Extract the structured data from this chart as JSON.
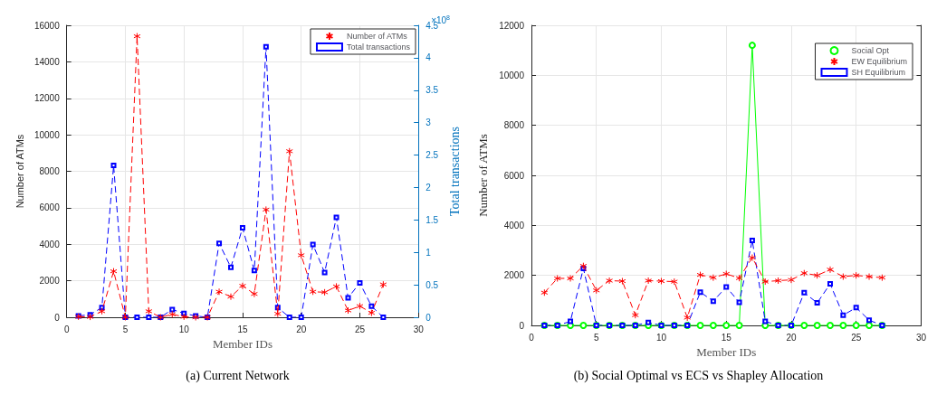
{
  "chart_data": [
    {
      "type": "line",
      "title": "(a) Current Network",
      "xlabel": "Member IDs",
      "ylabel": "Number of ATMs",
      "y2label": "Total transactions",
      "annotations": [
        "×10$^{8}$"
      ],
      "x": [
        1,
        2,
        3,
        4,
        5,
        6,
        7,
        8,
        9,
        10,
        11,
        12,
        13,
        14,
        15,
        16,
        17,
        18,
        19,
        20,
        21,
        22,
        23,
        24,
        25,
        26,
        27
      ],
      "series": [
        {
          "name": "Number of ATMs",
          "color": "#ff0000",
          "marker": "cross",
          "line_style": "dashed",
          "values": [
            30,
            20,
            330,
            2520,
            0,
            15400,
            330,
            0,
            160,
            30,
            0,
            0,
            1400,
            1130,
            1720,
            1280,
            5900,
            190,
            9100,
            3400,
            1400,
            1370,
            1690,
            370,
            610,
            240,
            1800
          ]
        },
        {
          "name": "Total transactions",
          "color": "#0000ff",
          "marker": "square",
          "line_style": "dashed",
          "axis": "y2",
          "values": [
            0.02,
            0.04,
            0.15,
            2.34,
            0,
            0,
            0,
            0,
            0.12,
            0.06,
            0.02,
            0,
            1.14,
            0.77,
            1.38,
            0.72,
            4.17,
            0.15,
            0,
            0,
            1.12,
            0.69,
            1.54,
            0.3,
            0.53,
            0.17,
            0
          ]
        }
      ],
      "xlim": [
        0,
        30
      ],
      "xticks": [
        0,
        5,
        10,
        15,
        20,
        25,
        30
      ],
      "ylim": [
        0,
        16000
      ],
      "yticks": [
        0,
        2000,
        4000,
        6000,
        8000,
        10000,
        12000,
        14000,
        16000
      ],
      "y2lim": [
        0,
        4.5
      ],
      "y2ticks": [
        0,
        0.5,
        1,
        1.5,
        2,
        2.5,
        3,
        3.5,
        4,
        4.5
      ],
      "grid": true,
      "legend": "top right"
    },
    {
      "type": "line",
      "title": "(b) Social Optimal vs ECS vs Shapley Allocation",
      "xlabel": "Member IDs",
      "ylabel": "Number of ATMs",
      "x": [
        1,
        2,
        3,
        4,
        5,
        6,
        7,
        8,
        9,
        10,
        11,
        12,
        13,
        14,
        15,
        16,
        17,
        18,
        19,
        20,
        21,
        22,
        23,
        24,
        25,
        26,
        27
      ],
      "series": [
        {
          "name": "Social Opt",
          "color": "#00ff00",
          "marker": "circle",
          "line_style": "solid",
          "values": [
            0,
            0,
            0,
            0,
            0,
            0,
            0,
            0,
            0,
            0,
            0,
            0,
            0,
            0,
            0,
            0,
            11200,
            0,
            0,
            0,
            0,
            0,
            0,
            0,
            0,
            0,
            0
          ]
        },
        {
          "name": "EW Equilibrium",
          "color": "#ff0000",
          "marker": "cross",
          "line_style": "dashed",
          "values": [
            1310,
            1880,
            1880,
            2380,
            1400,
            1790,
            1770,
            410,
            1790,
            1770,
            1750,
            310,
            2020,
            1910,
            2060,
            1890,
            2710,
            1750,
            1790,
            1820,
            2090,
            2000,
            2230,
            1950,
            2000,
            1950,
            1910
          ]
        },
        {
          "name": "SH Equilibrium",
          "color": "#0000ff",
          "marker": "square",
          "line_style": "dashed",
          "values": [
            0,
            0,
            160,
            2280,
            0,
            0,
            0,
            0,
            120,
            0,
            0,
            0,
            1330,
            970,
            1540,
            920,
            3400,
            160,
            0,
            0,
            1310,
            900,
            1660,
            410,
            710,
            210,
            0
          ]
        }
      ],
      "xlim": [
        0,
        30
      ],
      "xticks": [
        0,
        5,
        10,
        15,
        20,
        25,
        30
      ],
      "ylim": [
        0,
        12000
      ],
      "yticks": [
        0,
        2000,
        4000,
        6000,
        8000,
        10000,
        12000
      ],
      "grid": true,
      "legend": "top right"
    }
  ]
}
